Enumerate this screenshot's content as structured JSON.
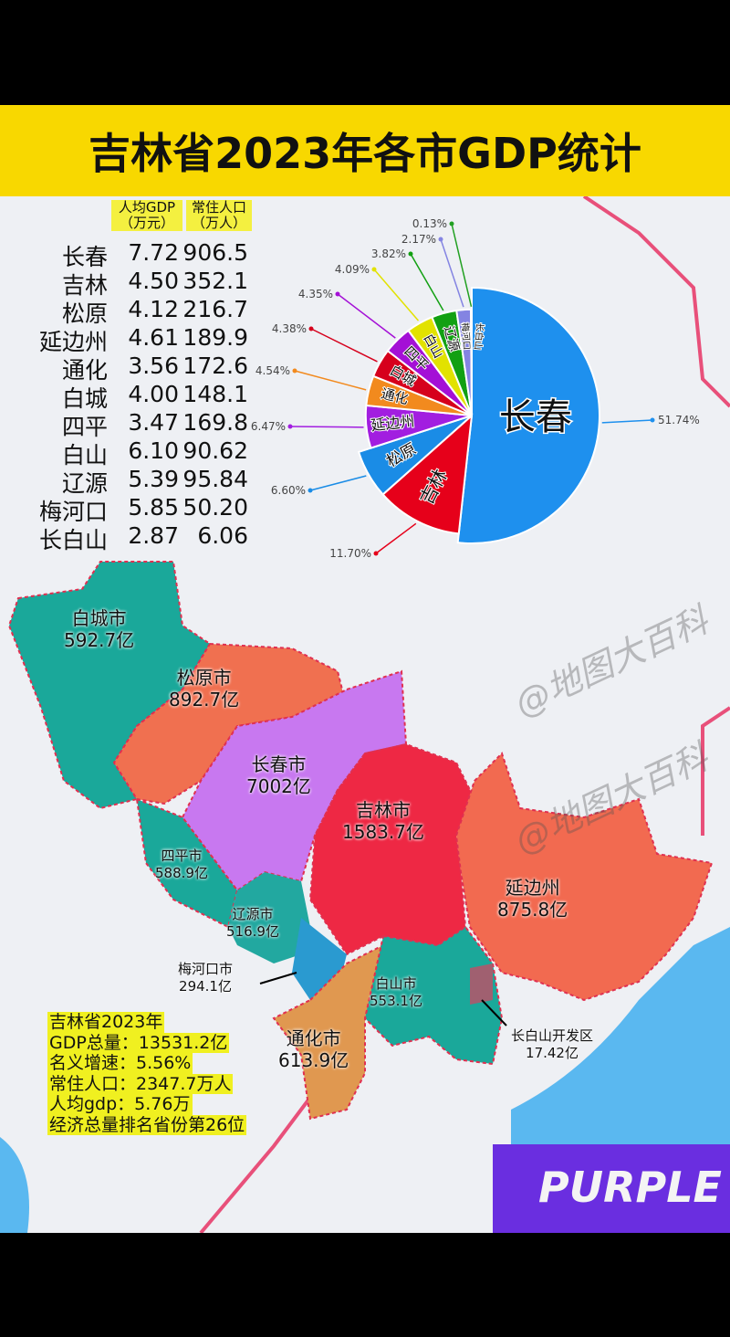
{
  "title": "吉林省2023年各市GDP统计",
  "table": {
    "headers": [
      {
        "line1": "人均GDP",
        "line2": "（万元）"
      },
      {
        "line1": "常住人口",
        "line2": "（万人）"
      }
    ],
    "rows": [
      {
        "city": "长春",
        "gdp_per_capita": "7.72",
        "population": "906.5"
      },
      {
        "city": "吉林",
        "gdp_per_capita": "4.50",
        "population": "352.1"
      },
      {
        "city": "松原",
        "gdp_per_capita": "4.12",
        "population": "216.7"
      },
      {
        "city": "延边州",
        "gdp_per_capita": "4.61",
        "population": "189.9"
      },
      {
        "city": "通化",
        "gdp_per_capita": "3.56",
        "population": "172.6"
      },
      {
        "city": "白城",
        "gdp_per_capita": "4.00",
        "population": "148.1"
      },
      {
        "city": "四平",
        "gdp_per_capita": "3.47",
        "population": "169.8"
      },
      {
        "city": "白山",
        "gdp_per_capita": "6.10",
        "population": "90.62"
      },
      {
        "city": "辽源",
        "gdp_per_capita": "5.39",
        "population": "95.84"
      },
      {
        "city": "梅河口",
        "gdp_per_capita": "5.85",
        "population": "50.20"
      },
      {
        "city": "长白山",
        "gdp_per_capita": "2.87",
        "population": "6.06"
      }
    ]
  },
  "chart_data": {
    "type": "pie",
    "slices": [
      {
        "label": "长春",
        "value": 51.74,
        "pct": "51.74%",
        "color": "#1e90ee"
      },
      {
        "label": "吉林",
        "value": 11.7,
        "pct": "11.70%",
        "color": "#e6001a"
      },
      {
        "label": "松原",
        "value": 6.6,
        "pct": "6.60%",
        "color": "#1a8ce6"
      },
      {
        "label": "延边州",
        "value": 6.47,
        "pct": "6.47%",
        "color": "#a21ee0"
      },
      {
        "label": "通化",
        "value": 4.54,
        "pct": "4.54%",
        "color": "#f28a1e"
      },
      {
        "label": "白城",
        "value": 4.38,
        "pct": "4.38%",
        "color": "#d6001c"
      },
      {
        "label": "四平",
        "value": 4.35,
        "pct": "4.35%",
        "color": "#a410d6"
      },
      {
        "label": "白山",
        "value": 4.09,
        "pct": "4.09%",
        "color": "#e2e200"
      },
      {
        "label": "辽源",
        "value": 3.82,
        "pct": "3.82%",
        "color": "#12a012"
      },
      {
        "label": "梅河口",
        "value": 2.17,
        "pct": "2.17%",
        "color": "#8484e2"
      },
      {
        "label": "长白山",
        "value": 0.13,
        "pct": "0.13%",
        "color": "#22a022"
      }
    ]
  },
  "regions": [
    {
      "name": "白城市",
      "gdp": "592.7亿",
      "color": "#1aa89a"
    },
    {
      "name": "松原市",
      "gdp": "892.7亿",
      "color": "#f07050"
    },
    {
      "name": "长春市",
      "gdp": "7002亿",
      "color": "#c878f0"
    },
    {
      "name": "吉林市",
      "gdp": "1583.7亿",
      "color": "#ee2844"
    },
    {
      "name": "延边州",
      "gdp": "875.8亿",
      "color": "#f26a50"
    },
    {
      "name": "四平市",
      "gdp": "588.9亿",
      "color": "#1aa89a"
    },
    {
      "name": "辽源市",
      "gdp": "516.9亿",
      "color": "#22a8a0"
    },
    {
      "name": "梅河口市",
      "gdp": "294.1亿",
      "color": "#2a9ad0"
    },
    {
      "name": "白山市",
      "gdp": "553.1亿",
      "color": "#1aa89a"
    },
    {
      "name": "通化市",
      "gdp": "613.9亿",
      "color": "#e09850"
    },
    {
      "name": "长白山开发区",
      "gdp": "17.42亿",
      "color": "#a06070"
    }
  ],
  "stats": [
    "吉林省2023年",
    "GDP总量：13531.2亿",
    "名义增速：5.56%",
    "常住人口：2347.7万人",
    "人均gdp：5.76万",
    "经济总量排名省份第26位"
  ],
  "watermark": "@地图大百科",
  "brand": "PURPLE"
}
